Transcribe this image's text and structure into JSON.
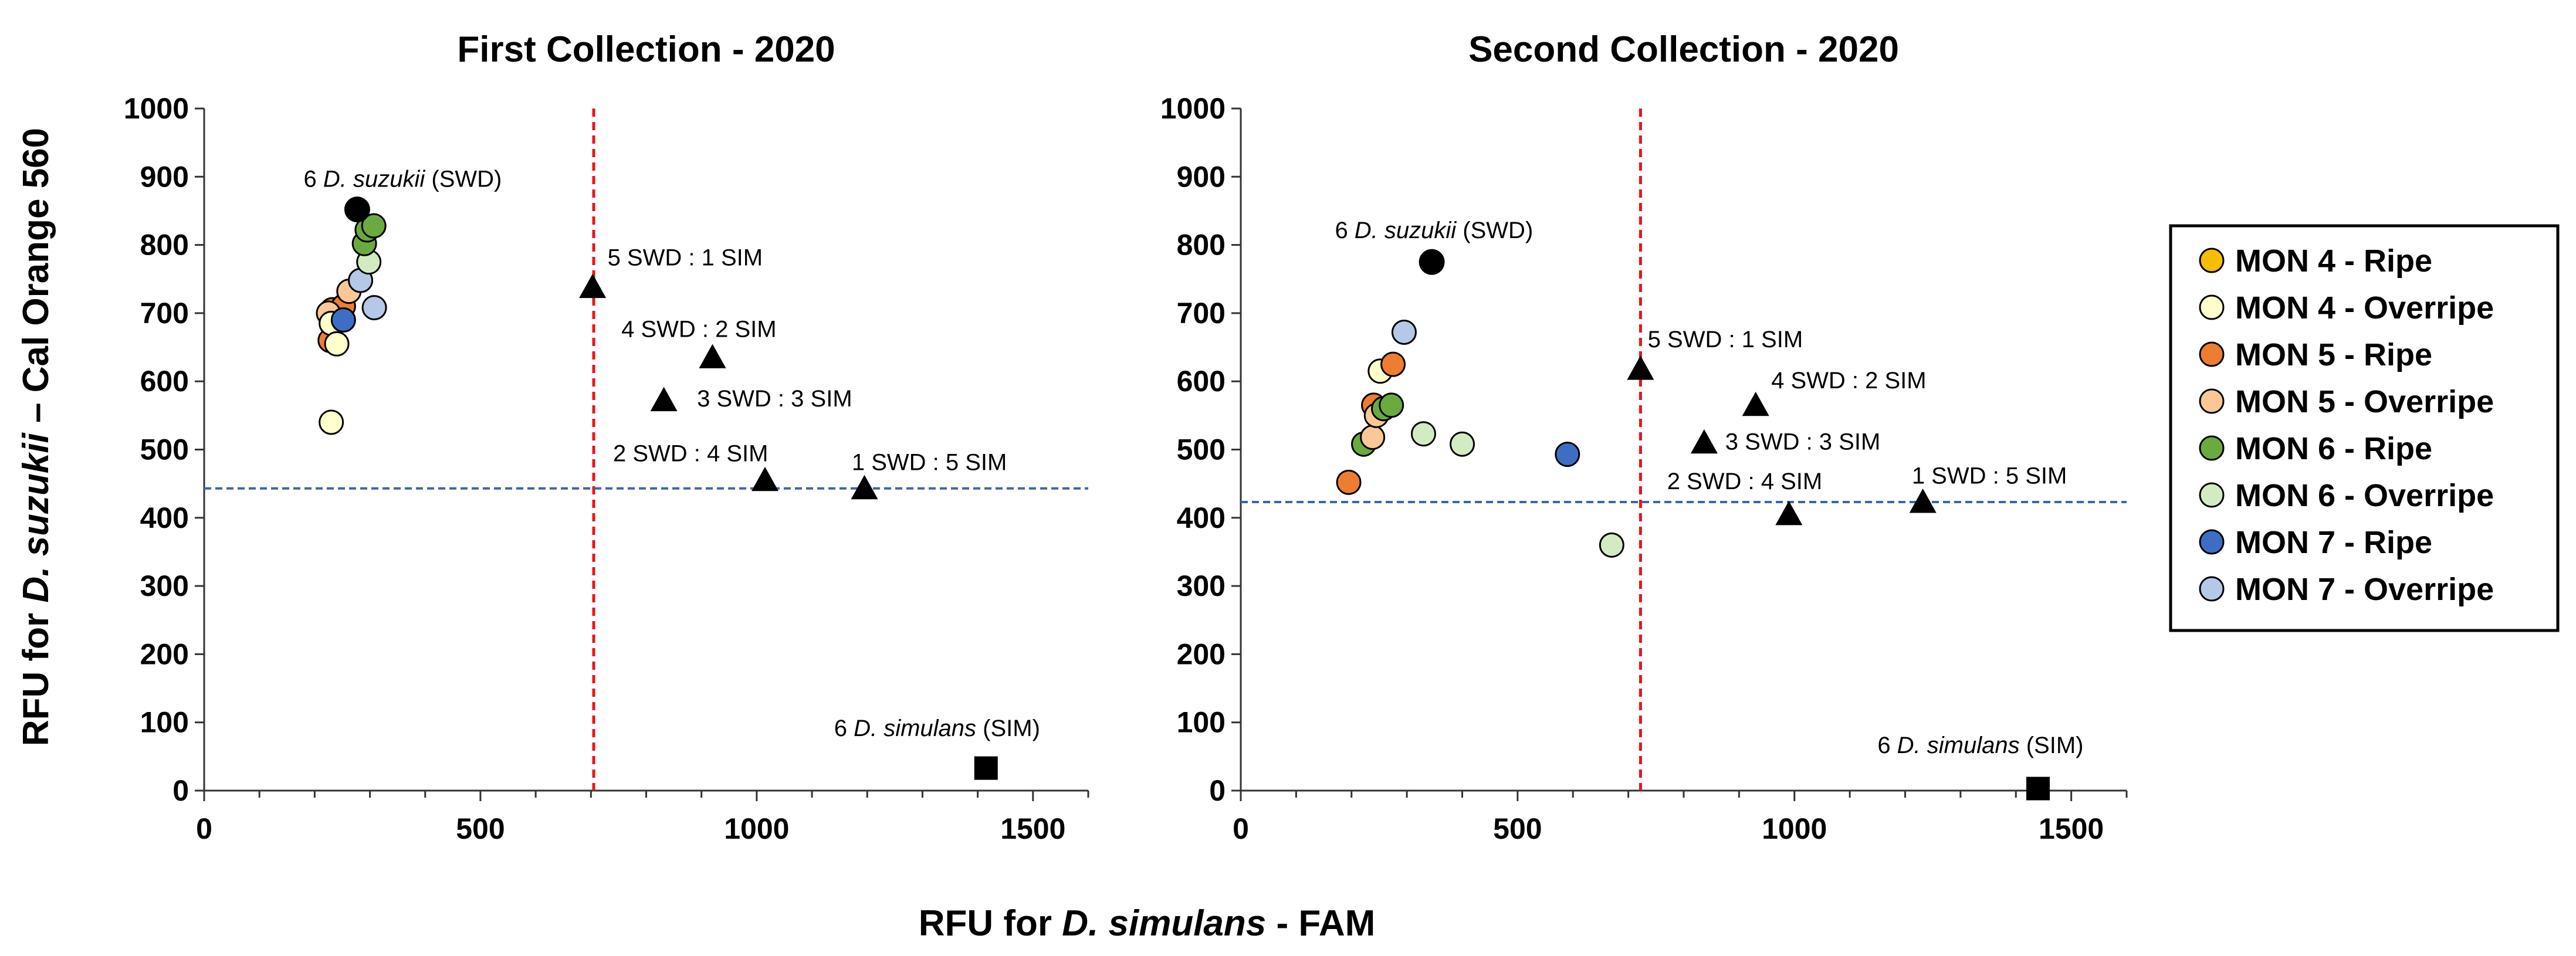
{
  "xlabel": {
    "pre": "RFU for ",
    "ital": "D. simulans",
    "post": " - FAM"
  },
  "ylabel": {
    "pre": "RFU for ",
    "ital": "D. suzukii",
    "post": " – Cal Orange 560"
  },
  "legend": [
    {
      "key": "mon4_ripe",
      "label": "MON 4 - Ripe",
      "color": "#F6BE00"
    },
    {
      "key": "mon4_over",
      "label": "MON 4 - Overripe",
      "color": "#FFFFCC"
    },
    {
      "key": "mon5_ripe",
      "label": "MON 5 - Ripe",
      "color": "#EE7D31"
    },
    {
      "key": "mon5_over",
      "label": "MON 5 - Overripe",
      "color": "#FAC796"
    },
    {
      "key": "mon6_ripe",
      "label": "MON 6 - Ripe",
      "color": "#6AAA3F"
    },
    {
      "key": "mon6_over",
      "label": "MON 6 - Overripe",
      "color": "#D3EBC3"
    },
    {
      "key": "mon7_ripe",
      "label": "MON 7 - Ripe",
      "color": "#3E6EC4"
    },
    {
      "key": "mon7_over",
      "label": "MON 7 - Overripe",
      "color": "#B5C8E8"
    }
  ],
  "chart_data": [
    {
      "type": "scatter",
      "title": "First Collection - 2020",
      "xlim": [
        0,
        1600
      ],
      "ylim": [
        0,
        1000
      ],
      "xticks": [
        0,
        500,
        1000,
        1500
      ],
      "yticks": [
        0,
        100,
        200,
        300,
        400,
        500,
        600,
        700,
        800,
        900,
        1000
      ],
      "threshold_x": 705,
      "threshold_y": 443,
      "samples": [
        {
          "series": "mon4_over",
          "x": 230,
          "y": 540
        },
        {
          "series": "mon5_ripe",
          "x": 228,
          "y": 660
        },
        {
          "series": "mon5_ripe",
          "x": 232,
          "y": 705
        },
        {
          "series": "mon5_ripe",
          "x": 252,
          "y": 710
        },
        {
          "series": "mon5_over",
          "x": 225,
          "y": 700
        },
        {
          "series": "mon5_over",
          "x": 262,
          "y": 732
        },
        {
          "series": "mon4_over",
          "x": 230,
          "y": 685
        },
        {
          "series": "mon4_over",
          "x": 240,
          "y": 655
        },
        {
          "series": "mon7_ripe",
          "x": 252,
          "y": 690
        },
        {
          "series": "mon7_over",
          "x": 283,
          "y": 748
        },
        {
          "series": "mon7_over",
          "x": 308,
          "y": 708
        },
        {
          "series": "mon6_over",
          "x": 298,
          "y": 775
        },
        {
          "series": "mon6_ripe",
          "x": 290,
          "y": 802
        },
        {
          "series": "mon6_ripe",
          "x": 295,
          "y": 822
        },
        {
          "series": "mon6_ripe",
          "x": 307,
          "y": 828
        }
      ],
      "controls": [
        {
          "kind": "swd",
          "x": 277,
          "y": 852
        },
        {
          "kind": "triangle",
          "x": 703,
          "y": 738
        },
        {
          "kind": "triangle",
          "x": 920,
          "y": 635
        },
        {
          "kind": "triangle",
          "x": 832,
          "y": 572
        },
        {
          "kind": "triangle",
          "x": 1015,
          "y": 455
        },
        {
          "kind": "triangle",
          "x": 1195,
          "y": 443
        },
        {
          "kind": "sim",
          "x": 1415,
          "y": 33
        }
      ],
      "annotations": [
        {
          "x": 180,
          "y": 885,
          "pre": "6 ",
          "ital": "D. suzukii",
          "post": " (SWD)"
        },
        {
          "x": 730,
          "y": 770,
          "pre": "5 SWD : 1 SIM",
          "ital": "",
          "post": ""
        },
        {
          "x": 755,
          "y": 665,
          "pre": "4 SWD : 2 SIM",
          "ital": "",
          "post": ""
        },
        {
          "x": 892,
          "y": 563,
          "pre": "3 SWD : 3 SIM",
          "ital": "",
          "post": ""
        },
        {
          "x": 740,
          "y": 483,
          "pre": "2 SWD : 4 SIM",
          "ital": "",
          "post": ""
        },
        {
          "x": 1172,
          "y": 470,
          "pre": "1 SWD : 5 SIM",
          "ital": "",
          "post": ""
        },
        {
          "x": 1140,
          "y": 80,
          "pre": "6 ",
          "ital": "D. simulans",
          "post": " (SIM)"
        }
      ]
    },
    {
      "type": "scatter",
      "title": "Second Collection - 2020",
      "xlim": [
        0,
        1600
      ],
      "ylim": [
        0,
        1000
      ],
      "xticks": [
        0,
        500,
        1000,
        1500
      ],
      "yticks": [
        0,
        100,
        200,
        300,
        400,
        500,
        600,
        700,
        800,
        900,
        1000
      ],
      "threshold_x": 722,
      "threshold_y": 423,
      "samples": [
        {
          "series": "mon5_ripe",
          "x": 195,
          "y": 452
        },
        {
          "series": "mon6_ripe",
          "x": 222,
          "y": 508
        },
        {
          "series": "mon5_over",
          "x": 238,
          "y": 518
        },
        {
          "series": "mon5_ripe",
          "x": 240,
          "y": 565
        },
        {
          "series": "mon5_over",
          "x": 245,
          "y": 550
        },
        {
          "series": "mon4_over",
          "x": 252,
          "y": 615
        },
        {
          "series": "mon5_ripe",
          "x": 275,
          "y": 625
        },
        {
          "series": "mon6_ripe",
          "x": 258,
          "y": 560
        },
        {
          "series": "mon6_ripe",
          "x": 272,
          "y": 565
        },
        {
          "series": "mon7_over",
          "x": 295,
          "y": 672
        },
        {
          "series": "mon6_over",
          "x": 330,
          "y": 523
        },
        {
          "series": "mon6_over",
          "x": 400,
          "y": 508
        },
        {
          "series": "mon7_ripe",
          "x": 590,
          "y": 493
        },
        {
          "series": "mon6_over",
          "x": 670,
          "y": 360
        }
      ],
      "controls": [
        {
          "kind": "swd",
          "x": 345,
          "y": 775
        },
        {
          "kind": "triangle",
          "x": 722,
          "y": 618
        },
        {
          "kind": "triangle",
          "x": 930,
          "y": 565
        },
        {
          "kind": "triangle",
          "x": 837,
          "y": 510
        },
        {
          "kind": "triangle",
          "x": 990,
          "y": 405
        },
        {
          "kind": "triangle",
          "x": 1232,
          "y": 423
        },
        {
          "kind": "sim",
          "x": 1440,
          "y": 3
        }
      ],
      "annotations": [
        {
          "x": 170,
          "y": 810,
          "pre": "6 ",
          "ital": "D. suzukii",
          "post": " (SWD)"
        },
        {
          "x": 735,
          "y": 650,
          "pre": "5 SWD : 1 SIM",
          "ital": "",
          "post": ""
        },
        {
          "x": 958,
          "y": 590,
          "pre": "4 SWD : 2 SIM",
          "ital": "",
          "post": ""
        },
        {
          "x": 875,
          "y": 500,
          "pre": "3 SWD : 3 SIM",
          "ital": "",
          "post": ""
        },
        {
          "x": 770,
          "y": 442,
          "pre": "2 SWD : 4 SIM",
          "ital": "",
          "post": ""
        },
        {
          "x": 1212,
          "y": 450,
          "pre": "1 SWD : 5 SIM",
          "ital": "",
          "post": ""
        },
        {
          "x": 1150,
          "y": 55,
          "pre": "6 ",
          "ital": "D. simulans",
          "post": " (SIM)"
        }
      ]
    }
  ]
}
